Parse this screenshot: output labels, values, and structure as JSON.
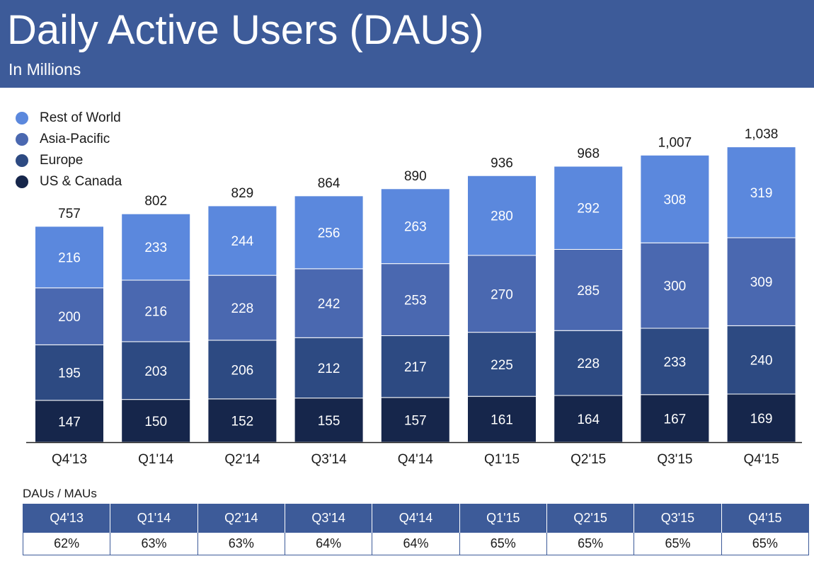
{
  "header": {
    "title": "Daily Active Users (DAUs)",
    "subtitle": "In Millions"
  },
  "colors": {
    "header_bg": "#3d5b99",
    "rest_of_world": "#5b88dd",
    "asia_pacific": "#4a68b0",
    "europe": "#2d4a82",
    "us_canada": "#16264b",
    "axis": "#222222",
    "bar_divider": "#ffffff"
  },
  "chart_data": {
    "type": "bar",
    "stacked": true,
    "title": "Daily Active Users (DAUs)",
    "subtitle": "In Millions",
    "legend_position": "top-left",
    "grid": false,
    "categories": [
      "Q4'13",
      "Q1'14",
      "Q2'14",
      "Q3'14",
      "Q4'14",
      "Q1'15",
      "Q2'15",
      "Q3'15",
      "Q4'15"
    ],
    "series": [
      {
        "name": "US & Canada",
        "color": "#16264b",
        "values": [
          147,
          150,
          152,
          155,
          157,
          161,
          164,
          167,
          169
        ]
      },
      {
        "name": "Europe",
        "color": "#2d4a82",
        "values": [
          195,
          203,
          206,
          212,
          217,
          225,
          228,
          233,
          240
        ]
      },
      {
        "name": "Asia-Pacific",
        "color": "#4a68b0",
        "values": [
          200,
          216,
          228,
          242,
          253,
          270,
          285,
          300,
          309
        ]
      },
      {
        "name": "Rest of World",
        "color": "#5b88dd",
        "values": [
          216,
          233,
          244,
          256,
          263,
          280,
          292,
          308,
          319
        ]
      }
    ],
    "totals": [
      "757",
      "802",
      "829",
      "864",
      "890",
      "936",
      "968",
      "1,007",
      "1,038"
    ],
    "ylim": [
      0,
      1100
    ]
  },
  "ratio_table": {
    "label": "DAUs  / MAUs",
    "headers": [
      "Q4'13",
      "Q1'14",
      "Q2'14",
      "Q3'14",
      "Q4'14",
      "Q1'15",
      "Q2'15",
      "Q3'15",
      "Q4'15"
    ],
    "values": [
      "62%",
      "63%",
      "63%",
      "64%",
      "64%",
      "65%",
      "65%",
      "65%",
      "65%"
    ]
  }
}
